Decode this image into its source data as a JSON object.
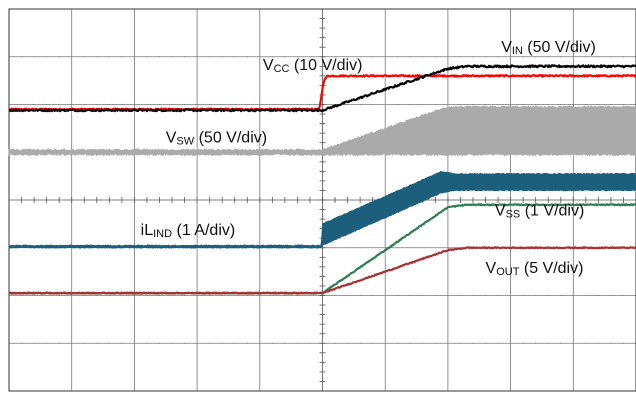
{
  "chart_data": {
    "type": "line",
    "grid": true,
    "xlim": [
      0,
      10
    ],
    "ylim": [
      0,
      8
    ],
    "series": [
      {
        "name": "VCC",
        "color": "#ff0000",
        "noise": 0.03,
        "x": [
          0,
          4.95,
          5.02,
          5.08,
          10
        ],
        "y": [
          5.9,
          5.9,
          6.5,
          6.6,
          6.6
        ]
      },
      {
        "name": "VIN",
        "color": "#000000",
        "noise": 0.04,
        "x": [
          0,
          5.0,
          7.0,
          7.3,
          10
        ],
        "y": [
          5.88,
          5.88,
          6.75,
          6.8,
          6.8
        ]
      },
      {
        "name": "VSW",
        "color": "#aaaaaa",
        "band": true,
        "noise": 0.04,
        "x": [
          0,
          5.0,
          7.0,
          10
        ],
        "lo": [
          4.95,
          4.95,
          4.95,
          4.95
        ],
        "hi": [
          5.05,
          5.05,
          5.95,
          5.95
        ]
      },
      {
        "name": "iLIND",
        "color": "#1c5f7d",
        "band": true,
        "noise": 0.02,
        "x": [
          0,
          4.98,
          5.0,
          6.9,
          7.1,
          10
        ],
        "lo": [
          3.0,
          3.0,
          3.05,
          4.15,
          4.2,
          4.2
        ],
        "hi": [
          3.05,
          3.05,
          3.5,
          4.6,
          4.55,
          4.55
        ]
      },
      {
        "name": "VSS",
        "color": "#2e7d4f",
        "noise": 0.02,
        "x": [
          0,
          5.0,
          7.0,
          7.3,
          10
        ],
        "y": [
          2.05,
          2.05,
          3.85,
          3.9,
          3.9
        ]
      },
      {
        "name": "VOUT",
        "color": "#a83232",
        "noise": 0.02,
        "x": [
          0,
          5.0,
          7.0,
          7.3,
          10
        ],
        "y": [
          2.05,
          2.05,
          2.95,
          3.0,
          3.0
        ]
      }
    ],
    "annotations": [
      {
        "name": "vcc",
        "main": "V",
        "sub": "CC",
        "rest": " (10 V/div)",
        "x": 4.05,
        "y": 6.72
      },
      {
        "name": "vin",
        "main": "V",
        "sub": "IN",
        "rest": " (50 V/div)",
        "x": 7.85,
        "y": 7.1
      },
      {
        "name": "vsw",
        "main": "V",
        "sub": "SW",
        "rest": " (50 V/div)",
        "x": 2.5,
        "y": 5.2
      },
      {
        "name": "ilind",
        "main": "iL",
        "sub": "IND",
        "rest": " (1 A/div)",
        "x": 2.1,
        "y": 3.27
      },
      {
        "name": "vss",
        "main": "V",
        "sub": "SS",
        "rest": " (1 V/div)",
        "x": 7.75,
        "y": 3.68
      },
      {
        "name": "vout",
        "main": "V",
        "sub": "OUT",
        "rest": " (5 V/div)",
        "x": 7.6,
        "y": 2.47
      }
    ]
  }
}
